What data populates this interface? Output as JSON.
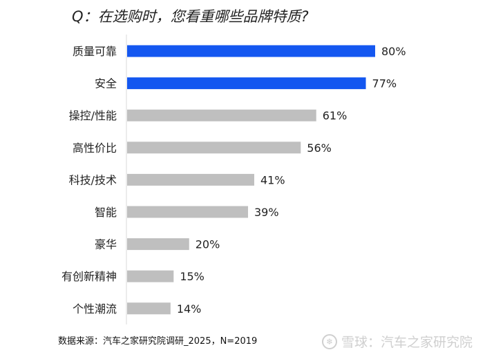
{
  "chart_data": {
    "type": "bar",
    "orientation": "horizontal",
    "title": "Q：在选购时，您看重哪些品牌特质?",
    "categories": [
      "质量可靠",
      "安全",
      "操控/性能",
      "高性价比",
      "科技/技术",
      "智能",
      "豪华",
      "有创新精神",
      "个性潮流"
    ],
    "values": [
      80,
      77,
      61,
      56,
      41,
      39,
      20,
      15,
      14
    ],
    "value_labels": [
      "80%",
      "77%",
      "61%",
      "56%",
      "41%",
      "39%",
      "20%",
      "15%",
      "14%"
    ],
    "unit": "%",
    "highlight_count": 2,
    "colors": {
      "highlight": "#1457f0",
      "default": "#bfbfbf",
      "axis": "#d9d9d9"
    },
    "xlim": [
      0,
      100
    ],
    "grid": false,
    "xlabel": "",
    "ylabel": ""
  },
  "footnote": "数据来源：汽车之家研究院调研_2025，N=2019",
  "watermark": {
    "icon": "snowball-logo-icon",
    "text": "雪球：汽车之家研究院"
  }
}
